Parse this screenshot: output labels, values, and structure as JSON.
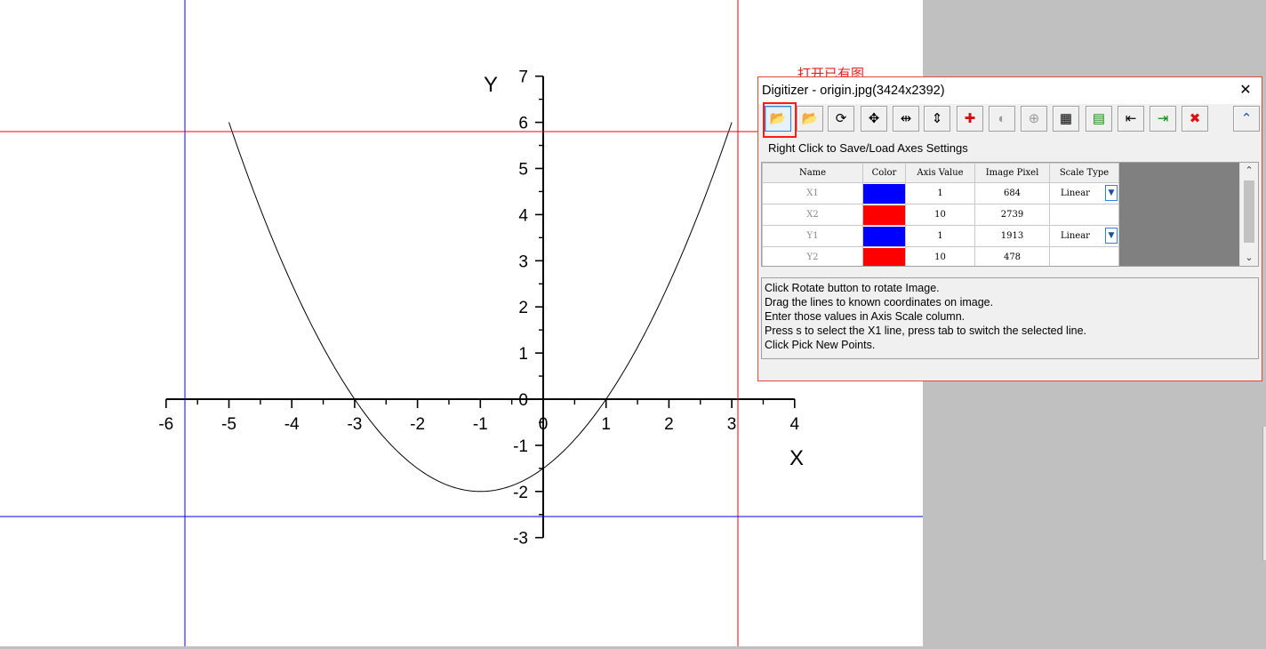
{
  "annotation": "打开已有图",
  "plot": {
    "axis_x_label": "X",
    "axis_y_label": "Y",
    "x_ticks": [
      "-6",
      "-5",
      "-4",
      "-3",
      "-2",
      "-1",
      "0",
      "1",
      "2",
      "3",
      "4"
    ],
    "y_ticks": [
      "-3",
      "-2",
      "-1",
      "0",
      "1",
      "2",
      "3",
      "4",
      "5",
      "6",
      "7"
    ],
    "curve": {
      "type": "parabola",
      "vertex": [
        -1,
        -2
      ],
      "coef": 0.5,
      "x_range": [
        -5,
        3
      ]
    },
    "calibration_lines": [
      {
        "name": "X1",
        "axis": "x",
        "color": "#0000ff"
      },
      {
        "name": "X2",
        "axis": "x",
        "color": "#ff0000"
      },
      {
        "name": "Y1",
        "axis": "y",
        "color": "#0000ff"
      },
      {
        "name": "Y2",
        "axis": "y",
        "color": "#ff0000"
      }
    ]
  },
  "digitizer": {
    "title": "Digitizer - origin.jpg(3424x2392)",
    "close_glyph": "✕",
    "hint": "Right Click to Save/Load Axes Settings",
    "toolbar": [
      {
        "name": "open-image-button",
        "icon": "📂",
        "pressed": true
      },
      {
        "name": "open-folder-button",
        "icon": "📂"
      },
      {
        "name": "rotate-button",
        "icon": "⟳"
      },
      {
        "name": "move-axes-button",
        "icon": "✥"
      },
      {
        "name": "x-axis-button",
        "icon": "⇹"
      },
      {
        "name": "y-axis-button",
        "icon": "⇕"
      },
      {
        "name": "pick-points-button",
        "icon": "✚"
      },
      {
        "name": "disabled-tool-button-1",
        "icon": "◐",
        "dimmed": true
      },
      {
        "name": "disabled-tool-button-2",
        "icon": "⊕",
        "dimmed": true
      },
      {
        "name": "data-display-button",
        "icon": "▦"
      },
      {
        "name": "worksheet-button",
        "icon": "▤"
      },
      {
        "name": "export-left-button",
        "icon": "⇤"
      },
      {
        "name": "import-peak-button",
        "icon": "⇥"
      },
      {
        "name": "delete-button",
        "icon": "✖"
      },
      {
        "name": "collapse-button",
        "icon": "⌃"
      }
    ],
    "table": {
      "headers": [
        "Name",
        "Color",
        "Axis Value",
        "Image Pixel",
        "Scale Type"
      ],
      "rows": [
        {
          "name": "X1",
          "color": "#0000ff",
          "axis_value": "1",
          "image_pixel": "684",
          "scale_type": "Linear"
        },
        {
          "name": "X2",
          "color": "#ff0000",
          "axis_value": "10",
          "image_pixel": "2739",
          "scale_type": ""
        },
        {
          "name": "Y1",
          "color": "#0000ff",
          "axis_value": "1",
          "image_pixel": "1913",
          "scale_type": "Linear"
        },
        {
          "name": "Y2",
          "color": "#ff0000",
          "axis_value": "10",
          "image_pixel": "478",
          "scale_type": ""
        }
      ]
    },
    "instructions": [
      "Click Rotate button to rotate Image.",
      "Drag the lines to known coordinates on image.",
      "Enter those values in Axis Scale column.",
      "Press s to select the X1 line, press tab to switch the selected line.",
      "Click Pick New Points."
    ]
  }
}
